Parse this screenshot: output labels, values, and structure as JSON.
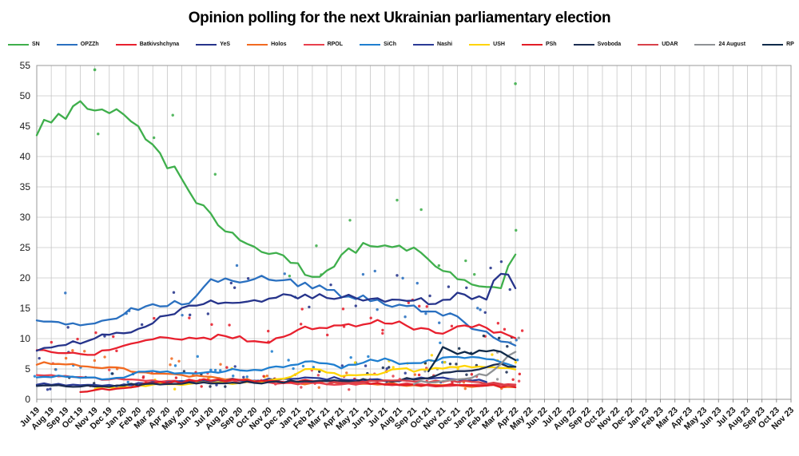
{
  "header": {
    "title": "Opinion polling for the next Ukrainian parliamentary election"
  },
  "chart_data": {
    "type": "line",
    "subtype": "trend-lines-with-scatter",
    "title": "Opinion polling for the next Ukrainian parliamentary election",
    "xlabel": "",
    "ylabel": "",
    "ylim": [
      0,
      55
    ],
    "y_tick_step": 5,
    "y_ticks": [
      0,
      5,
      10,
      15,
      20,
      25,
      30,
      35,
      40,
      45,
      50,
      55
    ],
    "grid": "on",
    "legend_position": "top",
    "x_labels": [
      "Jul 19",
      "Aug 19",
      "Sep 19",
      "Oct 19",
      "Nov 19",
      "Dec 19",
      "Jan 20",
      "Feb 20",
      "Mar 20",
      "Apr 20",
      "May 20",
      "Jun 20",
      "Jul 20",
      "Aug 20",
      "Sep 20",
      "Oct 20",
      "Nov 20",
      "Dec 20",
      "Jan 21",
      "Feb 21",
      "Mar 21",
      "Apr 21",
      "May 21",
      "Jun 21",
      "Jul 21",
      "Aug 21",
      "Sep 21",
      "Oct 21",
      "Nov 21",
      "Dec 21",
      "Jan 22",
      "Feb 22",
      "Mar 22",
      "Apr 22",
      "May 22",
      "Jun 22",
      "Jul 22",
      "Aug 22",
      "Sep 22",
      "Oct 22",
      "Nov 22",
      "Dec 22",
      "Jan 23",
      "Feb 23",
      "Mar 23",
      "Apr 23",
      "May 23",
      "Jun 23",
      "Jul 23",
      "Aug 23",
      "Sep 23",
      "Oct 23",
      "Nov 23"
    ],
    "data_months_span": [
      "Jul 19",
      "Apr 22"
    ],
    "series": [
      {
        "name": "SN",
        "color": "#3faf4c",
        "values": [
          43.5,
          45,
          46.5,
          48.3,
          47.6,
          47.3,
          47.2,
          44,
          41,
          38.4,
          35.5,
          32.5,
          30,
          27.5,
          26.3,
          25,
          24,
          23.3,
          21.8,
          19.8,
          21,
          23.2,
          24.3,
          25.2,
          24.8,
          24.6,
          24.7,
          23,
          21,
          19.2,
          18.6,
          18.3,
          18,
          24
        ]
      },
      {
        "name": "OPZZh",
        "color": "#2a70c0",
        "values": [
          13,
          12.7,
          12.3,
          12,
          12.2,
          12.9,
          13.6,
          14.8,
          15.2,
          15.3,
          15.5,
          16.5,
          19.2,
          19.4,
          19.3,
          19.5,
          19.7,
          19.5,
          18.5,
          18.2,
          17.8,
          17,
          16.5,
          16,
          15.7,
          15.3,
          15,
          14.3,
          13.6,
          13.3,
          11.3,
          11,
          9.3,
          8.8
        ]
      },
      {
        "name": "Batkivshchyna",
        "color": "#e8202e",
        "values": [
          8.1,
          7.8,
          7.5,
          7.2,
          7.4,
          7.8,
          8.6,
          9.3,
          9.9,
          10,
          9.8,
          9.7,
          10,
          10.3,
          10,
          9.4,
          9.1,
          10.2,
          11.2,
          11.4,
          11.6,
          11.9,
          12.1,
          12.4,
          12.5,
          12.7,
          11.6,
          11.2,
          10.7,
          11.8,
          11.8,
          11.6,
          10.7,
          9.7
        ]
      },
      {
        "name": "YeS",
        "color": "#26348b",
        "values": [
          8,
          8.2,
          8.7,
          9.2,
          9.8,
          10.3,
          10.8,
          11.6,
          12.3,
          13.5,
          14.7,
          15.4,
          15.8,
          16.1,
          16,
          16,
          16.2,
          17.4,
          16.5,
          16.3,
          16.8,
          16.5,
          16.7,
          16.2,
          16.1,
          16.2,
          16.4,
          15.8,
          16,
          17.1,
          16.1,
          16.2,
          20.8,
          18.4
        ]
      },
      {
        "name": "Holos",
        "color": "#f26a21",
        "values": [
          5.7,
          5.6,
          5.5,
          5.4,
          5.3,
          5.1,
          5,
          4.4,
          4.2,
          4,
          3.9,
          3.8,
          3.6,
          3.3,
          3,
          2.9,
          2.8,
          2.7,
          2.6,
          2.5,
          2.5,
          2.5,
          2.4,
          2.4,
          2.4,
          2.3,
          2.3,
          2.2,
          2.2,
          2.2,
          2.1,
          2.1,
          2,
          1.9
        ]
      },
      {
        "name": "RPOL",
        "color": "#e8404d",
        "values": [
          4,
          3.9,
          3.7,
          3.5,
          3.4,
          3.3,
          3.2,
          3.1,
          3,
          3,
          2.9,
          2.9,
          2.8,
          2.8,
          2.7,
          2.7,
          2.6,
          2.6,
          2.5,
          2.5,
          2.5,
          2.4,
          2.4,
          2.4,
          2.3,
          2.3,
          2.3,
          2.2,
          2.2,
          2.3,
          2.3,
          2.2,
          2.3,
          2.4
        ]
      },
      {
        "name": "SiCh",
        "color": "#1f7fd0",
        "values": [
          3.6,
          3.6,
          3.5,
          3.5,
          3.4,
          3.4,
          3.5,
          4.3,
          4.6,
          4.4,
          4.3,
          4.3,
          4.4,
          4.6,
          4.6,
          4.7,
          5,
          5.3,
          5.7,
          6,
          5.7,
          5.2,
          5.5,
          6.3,
          6.6,
          5.9,
          5.9,
          6.2,
          6.6,
          7,
          6.8,
          6.6,
          5.9,
          5.2
        ]
      },
      {
        "name": "Nashi",
        "color": "#2a3a96",
        "values": [
          2.4,
          2.4,
          2.3,
          2.3,
          2.2,
          2.2,
          2.3,
          2.5,
          2.7,
          2.8,
          2.8,
          2.9,
          3,
          3,
          3.1,
          3.1,
          3.2,
          3.2,
          3.3,
          3.4,
          3.3,
          3.2,
          3.2,
          3.1,
          3.1,
          3,
          3.2,
          3.4,
          3.5,
          3.3,
          3,
          2.8,
          null,
          null
        ]
      },
      {
        "name": "USH",
        "color": "#ffd400",
        "values": [
          null,
          null,
          null,
          null,
          1.7,
          1.8,
          1.9,
          2.2,
          2.3,
          2.4,
          2.4,
          2.5,
          2.5,
          2.6,
          2.7,
          2.8,
          3,
          3.3,
          4.2,
          5,
          4.3,
          3.7,
          3.8,
          3.9,
          4.2,
          4.9,
          4.6,
          4.7,
          4.9,
          5.2,
          5.1,
          5.3,
          5,
          4.8
        ]
      },
      {
        "name": "PSh",
        "color": "#e31d26",
        "values": [
          null,
          null,
          null,
          1.2,
          1.4,
          1.5,
          1.8,
          2.2,
          2.5,
          2.6,
          2.7,
          2.9,
          3,
          3,
          3,
          2.9,
          2.9,
          2.8,
          2.8,
          2.9,
          2.8,
          2.7,
          2.6,
          2.5,
          2.4,
          2.4,
          2.3,
          2.3,
          2.2,
          2.2,
          2.1,
          2.1,
          2,
          2
        ]
      },
      {
        "name": "Svoboda",
        "color": "#1b2d52",
        "values": [
          2.2,
          2.2,
          2.1,
          2.1,
          2,
          2,
          2.1,
          2.3,
          2.4,
          2.4,
          2.5,
          2.5,
          2.5,
          2.6,
          2.6,
          2.6,
          2.7,
          2.7,
          2.8,
          2.9,
          2.8,
          2.8,
          2.9,
          3,
          3,
          3.1,
          3.2,
          3.4,
          4.4,
          4.6,
          4.8,
          5.2,
          5.6,
          5.3
        ]
      },
      {
        "name": "UDAR",
        "color": "#d8414a",
        "values": [
          null,
          null,
          null,
          null,
          null,
          null,
          null,
          null,
          null,
          null,
          null,
          null,
          null,
          null,
          null,
          null,
          null,
          null,
          null,
          null,
          2.5,
          2.7,
          2.8,
          2.9,
          3,
          3,
          2.9,
          2.8,
          2.7,
          2.8,
          2.7,
          2.6,
          2.4,
          2.3
        ]
      },
      {
        "name": "24 August",
        "color": "#8f9295",
        "values": [
          null,
          null,
          null,
          null,
          null,
          null,
          null,
          null,
          null,
          null,
          null,
          null,
          null,
          null,
          null,
          null,
          null,
          null,
          null,
          null,
          null,
          null,
          null,
          null,
          null,
          null,
          2.5,
          2.8,
          3,
          3.2,
          3.5,
          4,
          5.8,
          7.6
        ]
      },
      {
        "name": "RP",
        "color": "#0f2a4a",
        "values": [
          null,
          null,
          null,
          null,
          null,
          null,
          null,
          null,
          null,
          null,
          null,
          null,
          null,
          null,
          null,
          null,
          null,
          null,
          null,
          null,
          null,
          null,
          null,
          null,
          null,
          null,
          null,
          4.6,
          8.3,
          7.3,
          7.5,
          7.6,
          7.9,
          6.3
        ]
      }
    ],
    "outlier_points": [
      {
        "series": "SN",
        "x_label": "Nov 19",
        "value": 54.3
      },
      {
        "series": "SN",
        "x_label": "Apr 22",
        "value": 52
      }
    ]
  }
}
